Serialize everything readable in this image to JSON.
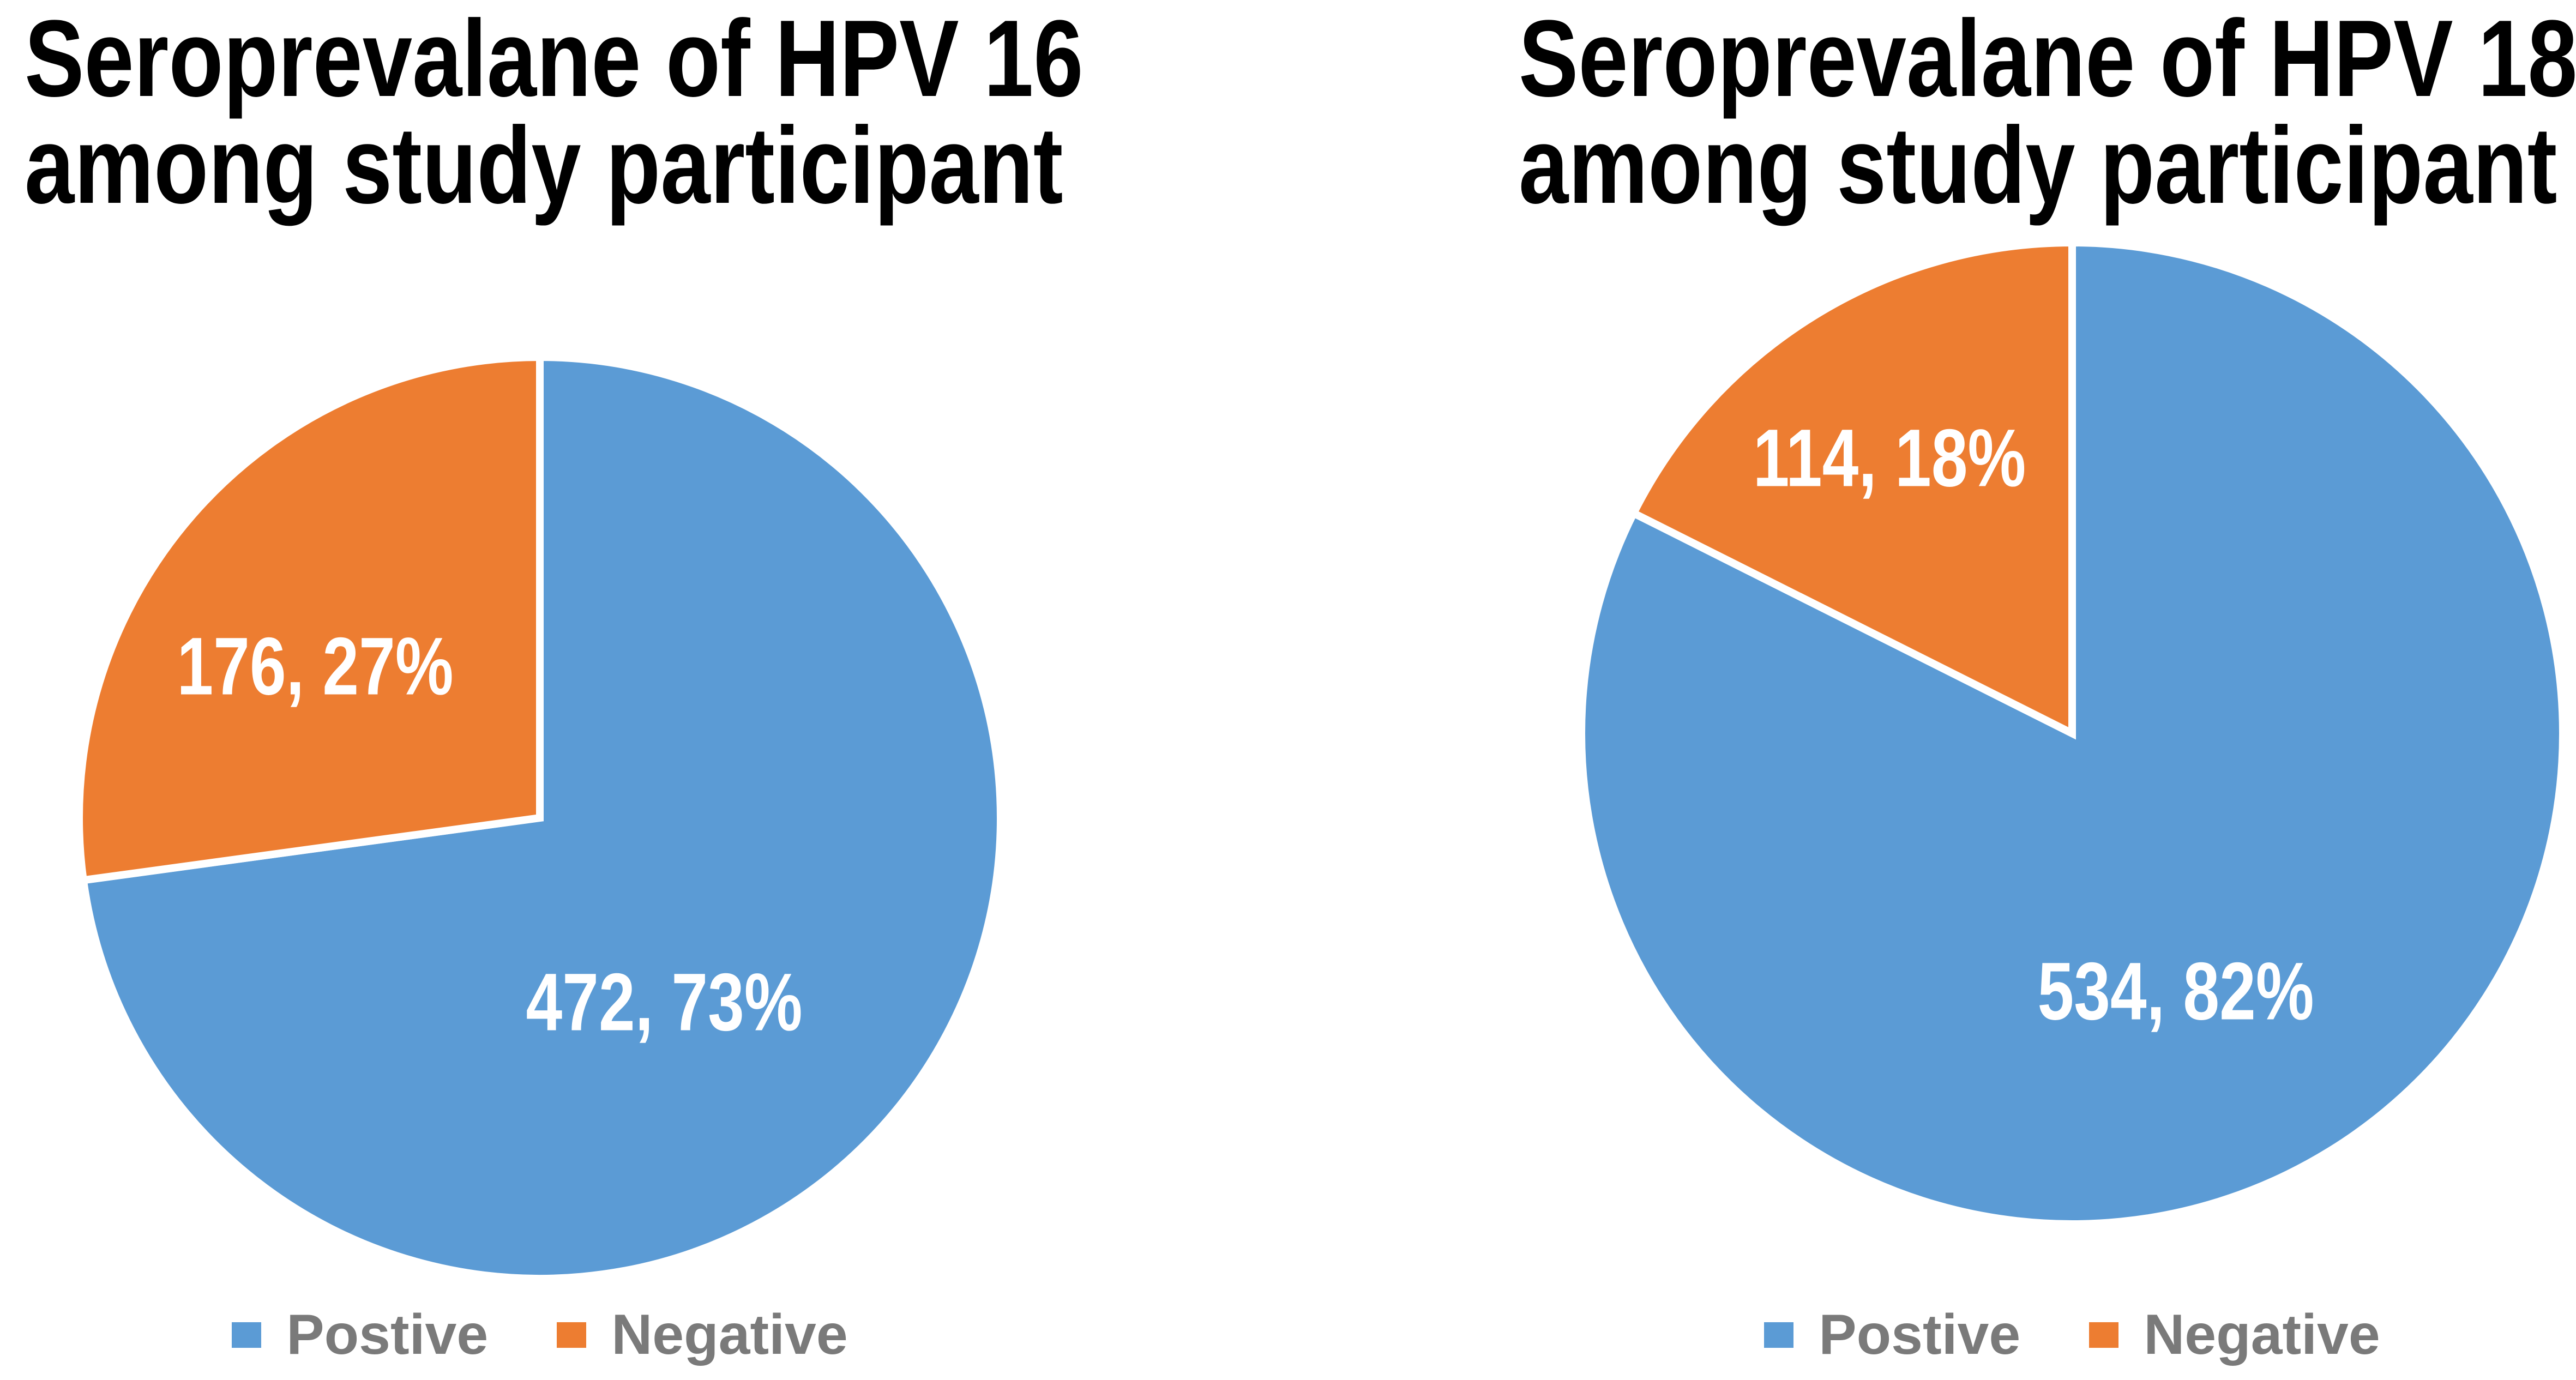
{
  "page": {
    "background": "#FFFFFF",
    "title_color": "#000000",
    "legend_text_color": "#7A7A7A"
  },
  "chart_data": [
    {
      "type": "pie",
      "title": "Seroprevalane of HPV 16 among study participant",
      "title_lines": [
        "Seroprevalane of HPV 16",
        "among study participant"
      ],
      "categories": [
        "Postive",
        "Negative"
      ],
      "values": [
        472,
        176
      ],
      "percents": [
        "73%",
        "27%"
      ],
      "data_labels": [
        "472, 73%",
        "176, 27%"
      ],
      "colors": [
        "#5B9BD5",
        "#ED7D31"
      ],
      "label_text_color": "#FFFFFF",
      "slice_separator_color": "#FFFFFF",
      "start_angle_deg": 0,
      "direction": "clockwise",
      "legend_position": "bottom"
    },
    {
      "type": "pie",
      "title": "Seroprevalane of HPV 18 among study participant",
      "title_lines": [
        "Seroprevalane of HPV 18",
        "among study participant"
      ],
      "categories": [
        "Postive",
        "Negative"
      ],
      "values": [
        534,
        114
      ],
      "percents": [
        "82%",
        "18%"
      ],
      "data_labels": [
        "534, 82%",
        "114, 18%"
      ],
      "colors": [
        "#5B9BD5",
        "#ED7D31"
      ],
      "label_text_color": "#FFFFFF",
      "slice_separator_color": "#FFFFFF",
      "start_angle_deg": 0,
      "direction": "clockwise",
      "legend_position": "bottom"
    }
  ]
}
